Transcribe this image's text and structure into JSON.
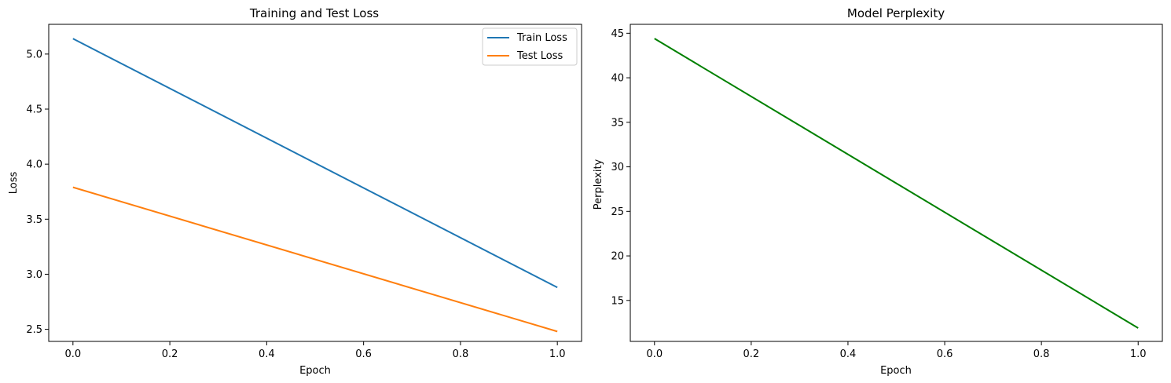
{
  "chart_data": [
    {
      "type": "line",
      "title": "Training and Test Loss",
      "xlabel": "Epoch",
      "ylabel": "Loss",
      "xlim": [
        -0.05,
        1.05
      ],
      "ylim": [
        2.39,
        5.27
      ],
      "xticks": [
        0.0,
        0.2,
        0.4,
        0.6,
        0.8,
        1.0
      ],
      "xtick_labels": [
        "0.0",
        "0.2",
        "0.4",
        "0.6",
        "0.8",
        "1.0"
      ],
      "yticks": [
        2.5,
        3.0,
        3.5,
        4.0,
        4.5,
        5.0
      ],
      "ytick_labels": [
        "2.5",
        "3.0",
        "3.5",
        "4.0",
        "4.5",
        "5.0"
      ],
      "grid": false,
      "legend": {
        "placement": "top-right"
      },
      "series": [
        {
          "name": "Train Loss",
          "color": "#1f77b4",
          "x": [
            0,
            1
          ],
          "y": [
            5.14,
            2.88
          ]
        },
        {
          "name": "Test Loss",
          "color": "#ff7f0e",
          "x": [
            0,
            1
          ],
          "y": [
            3.79,
            2.48
          ]
        }
      ]
    },
    {
      "type": "line",
      "title": "Model Perplexity",
      "xlabel": "Epoch",
      "ylabel": "Perplexity",
      "xlim": [
        -0.05,
        1.05
      ],
      "ylim": [
        10.4,
        46.0
      ],
      "xticks": [
        0.0,
        0.2,
        0.4,
        0.6,
        0.8,
        1.0
      ],
      "xtick_labels": [
        "0.0",
        "0.2",
        "0.4",
        "0.6",
        "0.8",
        "1.0"
      ],
      "yticks": [
        15,
        20,
        25,
        30,
        35,
        40,
        45
      ],
      "ytick_labels": [
        "15",
        "20",
        "25",
        "30",
        "35",
        "40",
        "45"
      ],
      "grid": false,
      "legend": null,
      "series": [
        {
          "color": "#008000",
          "x": [
            0,
            1
          ],
          "y": [
            44.4,
            11.9
          ]
        }
      ]
    }
  ]
}
